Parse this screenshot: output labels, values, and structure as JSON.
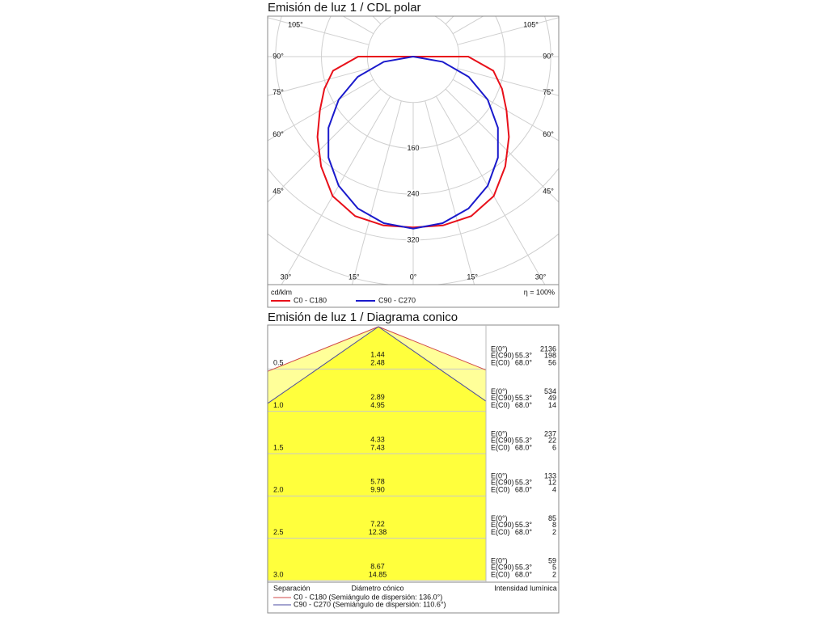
{
  "chart_data": [
    {
      "type": "polar",
      "title": "Emisión de luz 1 / CDL polar",
      "x": [
        -90,
        -80,
        -70,
        -60,
        -50,
        -40,
        -30,
        -20,
        -10,
        0,
        10,
        20,
        30,
        40,
        50,
        60,
        70,
        80,
        90
      ],
      "series": [
        {
          "name": "C0 - C180",
          "color": "#e8101a",
          "values": [
            96,
            142,
            165,
            188,
            218,
            250,
            281,
            296,
            299,
            298,
            299,
            296,
            281,
            250,
            218,
            188,
            165,
            142,
            96
          ]
        },
        {
          "name": "C90 - C270",
          "color": "#1a1acc",
          "values": [
            0,
            52,
            103,
            150,
            193,
            230,
            260,
            282,
            295,
            300,
            295,
            282,
            260,
            230,
            193,
            150,
            103,
            52,
            0
          ]
        }
      ],
      "rlim": [
        0,
        400
      ],
      "rticks": [
        160,
        240,
        320
      ],
      "angle_ticks": [
        {
          "value": -105,
          "label": "105°"
        },
        {
          "value": -90,
          "label": "90°"
        },
        {
          "value": -75,
          "label": "75°"
        },
        {
          "value": -60,
          "label": "60°"
        },
        {
          "value": -45,
          "label": "45°"
        },
        {
          "value": -30,
          "label": "30°"
        },
        {
          "value": -15,
          "label": "15°"
        },
        {
          "value": 0,
          "label": "0°"
        },
        {
          "value": 15,
          "label": "15°"
        },
        {
          "value": 30,
          "label": "30°"
        },
        {
          "value": 45,
          "label": "45°"
        },
        {
          "value": 60,
          "label": "60°"
        },
        {
          "value": 75,
          "label": "75°"
        },
        {
          "value": 90,
          "label": "90°"
        },
        {
          "value": 105,
          "label": "105°"
        }
      ],
      "unit": "cd/klm",
      "efficiency": "η = 100%",
      "grid": true
    },
    {
      "type": "cone",
      "title": "Emisión de luz 1 / Diagrama conico",
      "heights": [
        0.5,
        {
          "value": 1,
          "label": "1.0"
        },
        1.5,
        {
          "value": 2,
          "label": "2.0"
        },
        2.5,
        {
          "value": 3,
          "label": "3.0"
        }
      ],
      "series": [
        {
          "name": "C0 - C180 (Semiángulo de dispersión: 136.0°)",
          "color": "#d04848",
          "fill": "#ffff99",
          "e_label": "E(C0)",
          "angle_label": "68.0°",
          "values": [
            2.48,
            4.95,
            7.43,
            9.9,
            12.38,
            14.85
          ],
          "value_labels": [
            "2.48",
            "4.95",
            "7.43",
            "9.90",
            "12.38",
            "14.85"
          ],
          "illuminance": [
            56,
            14,
            6,
            4,
            2,
            2
          ]
        },
        {
          "name": "C90 - C270 (Semiángulo de dispersión: 110.6°)",
          "color": "#4a4aa0",
          "fill": "#ffff3c",
          "e_label": "E(C90)",
          "angle_label": "55.3°",
          "values": [
            1.44,
            2.89,
            4.33,
            5.78,
            7.22,
            8.67
          ],
          "illuminance": [
            198,
            49,
            22,
            12,
            8,
            5
          ]
        }
      ],
      "center_label": "E(0°)",
      "center_illuminance": [
        2136,
        534,
        237,
        133,
        85,
        59
      ],
      "height_label": "Separación",
      "diameter_label": "Diámetro cónico",
      "illuminance_label": "Intensidad lumínica"
    }
  ]
}
